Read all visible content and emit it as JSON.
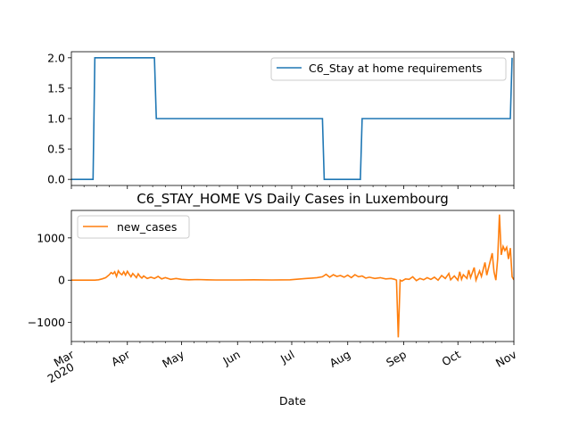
{
  "chart_data": [
    {
      "type": "line",
      "title": "",
      "xlabel": "",
      "ylabel": "",
      "ylim": [
        -0.1,
        2.1
      ],
      "yticks": [
        "0.0",
        "0.5",
        "1.0",
        "1.5",
        "2.0"
      ],
      "grid": false,
      "legend_position": "top-right",
      "series": [
        {
          "name": "C6_Stay at home requirements",
          "color": "#1f77b4",
          "x": [
            "2020-03-01",
            "2020-03-13",
            "2020-03-14",
            "2020-04-16",
            "2020-04-17",
            "2020-07-18",
            "2020-07-19",
            "2020-08-08",
            "2020-08-09",
            "2020-10-30",
            "2020-10-31"
          ],
          "y": [
            0,
            0,
            2,
            2,
            1,
            1,
            0,
            0,
            1,
            1,
            2
          ]
        }
      ]
    },
    {
      "type": "line",
      "title": "C6_STAY_HOME VS Daily Cases in Luxembourg",
      "xlabel": "Date",
      "ylabel": "",
      "ylim": [
        -1450,
        1650
      ],
      "yticks": [
        "−1000",
        "0",
        "1000"
      ],
      "xtick_labels": [
        {
          "date": "2020-03-01",
          "label": "Mar",
          "sub": "2020"
        },
        {
          "date": "2020-04-01",
          "label": "Apr"
        },
        {
          "date": "2020-05-01",
          "label": "May"
        },
        {
          "date": "2020-06-01",
          "label": "Jun"
        },
        {
          "date": "2020-07-01",
          "label": "Jul"
        },
        {
          "date": "2020-08-01",
          "label": "Aug"
        },
        {
          "date": "2020-09-01",
          "label": "Sep"
        },
        {
          "date": "2020-10-01",
          "label": "Oct"
        },
        {
          "date": "2020-11-01",
          "label": "Nov"
        }
      ],
      "grid": false,
      "legend_position": "top-left",
      "series": [
        {
          "name": "new_cases",
          "color": "#ff7f0e",
          "x": [
            "2020-03-01",
            "2020-03-05",
            "2020-03-10",
            "2020-03-14",
            "2020-03-16",
            "2020-03-18",
            "2020-03-20",
            "2020-03-22",
            "2020-03-23",
            "2020-03-24",
            "2020-03-25",
            "2020-03-26",
            "2020-03-27",
            "2020-03-28",
            "2020-03-29",
            "2020-03-30",
            "2020-03-31",
            "2020-04-01",
            "2020-04-02",
            "2020-04-03",
            "2020-04-04",
            "2020-04-05",
            "2020-04-06",
            "2020-04-07",
            "2020-04-08",
            "2020-04-09",
            "2020-04-10",
            "2020-04-12",
            "2020-04-14",
            "2020-04-16",
            "2020-04-18",
            "2020-04-20",
            "2020-04-22",
            "2020-04-25",
            "2020-04-28",
            "2020-05-01",
            "2020-05-05",
            "2020-05-10",
            "2020-05-15",
            "2020-05-20",
            "2020-05-25",
            "2020-06-01",
            "2020-06-10",
            "2020-06-20",
            "2020-06-30",
            "2020-07-03",
            "2020-07-06",
            "2020-07-09",
            "2020-07-12",
            "2020-07-15",
            "2020-07-18",
            "2020-07-20",
            "2020-07-22",
            "2020-07-24",
            "2020-07-26",
            "2020-07-28",
            "2020-07-30",
            "2020-08-01",
            "2020-08-03",
            "2020-08-05",
            "2020-08-07",
            "2020-08-09",
            "2020-08-11",
            "2020-08-13",
            "2020-08-16",
            "2020-08-19",
            "2020-08-22",
            "2020-08-25",
            "2020-08-27",
            "2020-08-28",
            "2020-08-29",
            "2020-08-30",
            "2020-08-31",
            "2020-09-02",
            "2020-09-04",
            "2020-09-06",
            "2020-09-08",
            "2020-09-10",
            "2020-09-12",
            "2020-09-14",
            "2020-09-16",
            "2020-09-18",
            "2020-09-20",
            "2020-09-22",
            "2020-09-24",
            "2020-09-26",
            "2020-09-27",
            "2020-09-29",
            "2020-10-01",
            "2020-10-02",
            "2020-10-03",
            "2020-10-04",
            "2020-10-06",
            "2020-10-07",
            "2020-10-08",
            "2020-10-10",
            "2020-10-11",
            "2020-10-13",
            "2020-10-14",
            "2020-10-16",
            "2020-10-17",
            "2020-10-18",
            "2020-10-20",
            "2020-10-21",
            "2020-10-22",
            "2020-10-23",
            "2020-10-24",
            "2020-10-25",
            "2020-10-26",
            "2020-10-27",
            "2020-10-28",
            "2020-10-29",
            "2020-10-30",
            "2020-10-31",
            "2020-11-01"
          ],
          "y": [
            0,
            0,
            0,
            0,
            10,
            30,
            60,
            130,
            180,
            150,
            200,
            90,
            220,
            160,
            130,
            200,
            120,
            210,
            140,
            80,
            160,
            110,
            60,
            150,
            90,
            50,
            100,
            40,
            70,
            40,
            90,
            30,
            60,
            20,
            40,
            20,
            10,
            15,
            10,
            5,
            5,
            5,
            10,
            5,
            10,
            20,
            30,
            40,
            50,
            60,
            80,
            140,
            70,
            130,
            90,
            110,
            70,
            120,
            60,
            130,
            80,
            100,
            50,
            70,
            40,
            60,
            30,
            40,
            20,
            0,
            -1350,
            0,
            -20,
            30,
            20,
            80,
            -10,
            40,
            10,
            60,
            20,
            70,
            0,
            110,
            40,
            160,
            10,
            100,
            0,
            200,
            20,
            130,
            40,
            240,
            60,
            300,
            0,
            220,
            90,
            420,
            120,
            300,
            640,
            200,
            0,
            500,
            1550,
            600,
            800,
            700,
            780,
            500,
            760,
            80,
            10
          ]
        }
      ]
    }
  ]
}
